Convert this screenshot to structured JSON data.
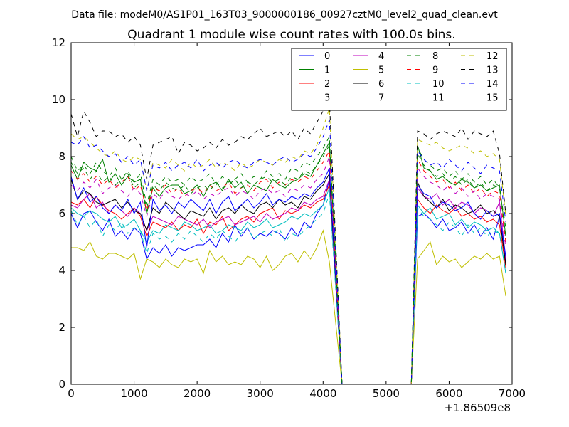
{
  "suptitle": "Data file: modeM0/AS1P01_163T03_9000000186_00927cztM0_level2_quad_clean.evt",
  "chart_data": {
    "type": "line",
    "title": "Quadrant 1 module wise count rates with 100.0s bins.",
    "xlabel": "",
    "ylabel": "",
    "xlim": [
      0,
      7000
    ],
    "ylim": [
      0,
      12
    ],
    "x_offset_label": "+1.86509e8",
    "x_ticks": [
      0,
      1000,
      2000,
      3000,
      4000,
      5000,
      6000,
      7000
    ],
    "x_tick_labels": [
      "0",
      "1000",
      "2000",
      "3000",
      "4000",
      "5000",
      "6000",
      "7000"
    ],
    "y_ticks": [
      0,
      2,
      4,
      6,
      8,
      10,
      12
    ],
    "y_tick_labels": [
      "0",
      "2",
      "4",
      "6",
      "8",
      "10",
      "12"
    ],
    "legend_position": "top-right",
    "legend_columns": 4,
    "x_start": 0,
    "x_step": 100,
    "note_x": "Points at 0..4100 step 100 (42 pts), 4300..5400 near zero, 5500..6900 second segment",
    "series": [
      {
        "name": "0",
        "color": "#0000ff",
        "dash": "solid",
        "values": [
          6.0,
          5.5,
          6.0,
          6.1,
          5.7,
          5.4,
          5.8,
          5.2,
          5.4,
          5.1,
          5.5,
          5.3,
          4.4,
          4.8,
          4.6,
          4.9,
          4.5,
          4.8,
          4.7,
          4.8,
          4.9,
          4.9,
          5.1,
          4.8,
          5.3,
          5.0,
          5.6,
          5.2,
          5.5,
          5.1,
          5.3,
          5.2,
          5.4,
          5.3,
          5.1,
          5.5,
          5.2,
          5.7,
          5.5,
          6.0,
          6.3,
          7.2,
          0,
          0,
          0,
          0,
          0,
          0,
          0,
          0,
          0,
          0,
          0,
          0,
          5.9,
          6.0,
          5.8,
          5.5,
          5.8,
          5.4,
          5.5,
          5.7,
          5.3,
          5.6,
          5.2,
          5.5,
          5.1,
          5.9,
          4.3
        ]
      },
      {
        "name": "1",
        "color": "#008000",
        "dash": "solid",
        "values": [
          7.7,
          7.2,
          7.8,
          7.6,
          7.5,
          7.9,
          7.1,
          7.4,
          7.0,
          7.3,
          7.1,
          7.2,
          6.0,
          6.9,
          6.6,
          6.9,
          7.0,
          7.0,
          6.7,
          6.8,
          7.0,
          6.6,
          7.0,
          7.1,
          6.8,
          7.2,
          6.9,
          7.1,
          6.7,
          7.0,
          6.9,
          6.8,
          7.2,
          7.0,
          6.9,
          7.1,
          7.2,
          7.4,
          7.3,
          7.7,
          8.1,
          8.5,
          0,
          0,
          0,
          0,
          0,
          0,
          0,
          0,
          0,
          0,
          0,
          0,
          8.4,
          7.6,
          7.5,
          7.2,
          7.3,
          7.1,
          7.0,
          7.2,
          7.1,
          6.9,
          7.0,
          6.8,
          6.9,
          7.0,
          5.2
        ]
      },
      {
        "name": "2",
        "color": "#ff0000",
        "dash": "solid",
        "values": [
          6.4,
          6.3,
          6.5,
          6.2,
          6.6,
          6.3,
          6.1,
          6.0,
          5.8,
          6.0,
          6.2,
          5.9,
          5.2,
          5.7,
          5.6,
          5.5,
          5.7,
          5.4,
          5.6,
          5.5,
          5.8,
          5.3,
          5.7,
          5.6,
          5.9,
          5.4,
          5.6,
          5.8,
          5.9,
          5.7,
          6.0,
          6.1,
          6.2,
          5.8,
          6.1,
          6.0,
          6.1,
          6.3,
          6.2,
          6.4,
          6.5,
          7.0,
          0,
          0,
          0,
          0,
          0,
          0,
          0,
          0,
          0,
          0,
          0,
          0,
          6.5,
          6.2,
          6.0,
          6.3,
          6.1,
          6.0,
          6.2,
          5.9,
          6.0,
          5.8,
          5.9,
          5.7,
          5.8,
          5.6,
          4.1
        ]
      },
      {
        "name": "3",
        "color": "#00bfbf",
        "dash": "solid",
        "values": [
          6.2,
          6.0,
          5.9,
          6.1,
          6.0,
          5.8,
          5.7,
          5.9,
          5.5,
          5.6,
          5.8,
          5.4,
          5.0,
          5.4,
          5.3,
          5.6,
          5.5,
          5.4,
          5.7,
          5.6,
          5.4,
          5.5,
          5.6,
          5.3,
          5.4,
          5.6,
          5.5,
          5.4,
          5.7,
          5.5,
          5.6,
          5.8,
          5.5,
          5.6,
          5.7,
          5.9,
          5.8,
          6.0,
          5.9,
          6.1,
          6.3,
          6.9,
          0,
          0,
          0,
          0,
          0,
          0,
          0,
          0,
          0,
          0,
          0,
          0,
          6.3,
          6.0,
          6.2,
          5.8,
          5.9,
          6.0,
          5.6,
          5.8,
          5.5,
          5.7,
          5.6,
          5.4,
          5.5,
          5.3,
          3.9
        ]
      },
      {
        "name": "4",
        "color": "#bf00bf",
        "dash": "solid",
        "values": [
          6.3,
          6.2,
          6.5,
          6.7,
          6.2,
          6.4,
          6.0,
          6.3,
          6.1,
          5.9,
          6.2,
          6.0,
          5.4,
          5.9,
          5.8,
          5.7,
          5.6,
          5.9,
          5.8,
          5.7,
          5.6,
          5.8,
          5.5,
          5.7,
          5.8,
          5.9,
          5.6,
          5.7,
          5.8,
          5.9,
          5.7,
          6.0,
          5.8,
          5.9,
          6.0,
          6.2,
          6.1,
          6.4,
          6.3,
          6.5,
          6.6,
          7.2,
          0,
          0,
          0,
          0,
          0,
          0,
          0,
          0,
          0,
          0,
          0,
          0,
          6.9,
          6.6,
          6.5,
          6.7,
          6.3,
          6.5,
          6.2,
          6.4,
          6.3,
          6.0,
          6.2,
          6.1,
          5.9,
          6.4,
          4.4
        ]
      },
      {
        "name": "5",
        "color": "#bfbf00",
        "dash": "solid",
        "values": [
          4.8,
          4.8,
          4.7,
          5.0,
          4.5,
          4.4,
          4.6,
          4.6,
          4.5,
          4.4,
          4.6,
          3.7,
          4.4,
          4.3,
          4.1,
          4.4,
          4.2,
          4.1,
          4.4,
          4.3,
          4.4,
          3.9,
          4.7,
          4.3,
          4.5,
          4.2,
          4.3,
          4.2,
          4.5,
          4.4,
          4.1,
          4.5,
          4.0,
          4.2,
          4.5,
          4.6,
          4.3,
          4.7,
          4.4,
          4.8,
          5.4,
          4.3,
          0,
          0,
          0,
          0,
          0,
          0,
          0,
          0,
          0,
          0,
          0,
          0,
          4.4,
          4.7,
          5.0,
          4.2,
          4.5,
          4.3,
          4.4,
          4.1,
          4.3,
          4.5,
          4.4,
          4.6,
          4.4,
          4.5,
          3.1
        ]
      },
      {
        "name": "6",
        "color": "#000000",
        "dash": "solid",
        "values": [
          7.2,
          6.5,
          6.8,
          6.7,
          6.4,
          6.3,
          6.4,
          6.5,
          6.2,
          6.4,
          6.1,
          6.0,
          5.4,
          6.2,
          6.0,
          6.4,
          6.2,
          6.0,
          5.8,
          6.1,
          6.0,
          5.9,
          6.2,
          5.8,
          6.1,
          6.2,
          6.0,
          6.3,
          6.1,
          6.0,
          6.3,
          6.4,
          6.2,
          6.5,
          6.3,
          6.4,
          6.2,
          6.6,
          6.5,
          6.8,
          7.0,
          7.4,
          0,
          0,
          0,
          0,
          0,
          0,
          0,
          0,
          0,
          0,
          0,
          0,
          7.1,
          6.6,
          6.4,
          6.2,
          6.5,
          6.1,
          6.3,
          6.2,
          6.0,
          6.1,
          6.3,
          6.0,
          6.1,
          5.9,
          4.2
        ]
      },
      {
        "name": "7",
        "color": "#0000ff",
        "dash": "solid",
        "values": [
          7.3,
          6.5,
          6.9,
          6.4,
          6.6,
          6.2,
          6.0,
          6.3,
          6.1,
          6.5,
          6.0,
          6.4,
          4.8,
          6.5,
          6.1,
          6.3,
          6.0,
          6.4,
          6.2,
          6.5,
          6.3,
          6.1,
          6.5,
          6.0,
          6.4,
          6.6,
          6.1,
          6.3,
          6.5,
          6.2,
          6.4,
          6.7,
          6.3,
          6.5,
          6.4,
          6.6,
          6.5,
          6.7,
          6.6,
          6.9,
          7.1,
          7.6,
          0,
          0,
          0,
          0,
          0,
          0,
          0,
          0,
          0,
          0,
          0,
          0,
          7.0,
          6.7,
          6.6,
          6.2,
          6.4,
          6.3,
          6.1,
          6.2,
          6.4,
          6.0,
          5.8,
          6.1,
          5.9,
          6.0,
          4.5
        ]
      },
      {
        "name": "8",
        "color": "#008000",
        "dash": "dashed",
        "values": [
          8.0,
          7.5,
          7.7,
          7.4,
          7.8,
          7.5,
          7.3,
          7.6,
          7.2,
          7.5,
          7.1,
          7.4,
          6.3,
          7.2,
          7.0,
          7.3,
          7.1,
          7.2,
          7.0,
          7.3,
          7.1,
          7.2,
          7.4,
          7.0,
          7.3,
          7.1,
          7.2,
          7.4,
          7.1,
          7.3,
          7.2,
          7.5,
          7.3,
          7.4,
          7.2,
          7.6,
          7.5,
          7.8,
          7.7,
          8.0,
          8.3,
          8.7,
          0,
          0,
          0,
          0,
          0,
          0,
          0,
          0,
          0,
          0,
          0,
          0,
          8.3,
          7.9,
          7.7,
          7.5,
          7.6,
          7.3,
          7.5,
          7.2,
          7.4,
          7.1,
          7.3,
          7.0,
          7.2,
          6.9,
          5.5
        ]
      },
      {
        "name": "9",
        "color": "#ff0000",
        "dash": "dashed",
        "values": [
          7.5,
          7.2,
          7.4,
          7.1,
          7.3,
          7.0,
          7.2,
          6.9,
          7.1,
          7.3,
          6.8,
          7.0,
          6.1,
          6.9,
          6.8,
          7.0,
          6.7,
          6.9,
          6.6,
          6.8,
          6.9,
          6.7,
          7.0,
          6.8,
          6.9,
          7.1,
          6.7,
          6.9,
          7.0,
          6.8,
          7.1,
          7.2,
          6.9,
          7.1,
          7.0,
          7.2,
          7.1,
          7.3,
          7.2,
          7.5,
          7.8,
          8.2,
          0,
          0,
          0,
          0,
          0,
          0,
          0,
          0,
          0,
          0,
          0,
          0,
          7.9,
          7.5,
          7.3,
          7.1,
          7.2,
          6.9,
          7.1,
          6.8,
          7.0,
          6.7,
          6.9,
          6.6,
          6.8,
          6.7,
          5.0
        ]
      },
      {
        "name": "10",
        "color": "#00bfbf",
        "dash": "dashed",
        "values": [
          6.1,
          5.6,
          5.9,
          5.5,
          5.8,
          5.2,
          5.6,
          5.4,
          5.7,
          5.3,
          5.5,
          5.4,
          4.6,
          5.3,
          5.1,
          5.2,
          5.0,
          5.3,
          5.1,
          5.4,
          5.2,
          5.0,
          5.3,
          5.1,
          5.4,
          5.2,
          5.0,
          5.3,
          5.5,
          5.1,
          5.3,
          5.4,
          5.2,
          5.5,
          5.0,
          5.3,
          5.2,
          5.4,
          5.6,
          5.8,
          6.0,
          6.7,
          0,
          0,
          0,
          0,
          0,
          0,
          0,
          0,
          0,
          0,
          0,
          0,
          6.2,
          5.9,
          5.8,
          5.6,
          5.4,
          5.7,
          5.5,
          5.2,
          5.6,
          5.3,
          5.5,
          5.2,
          5.4,
          5.3,
          3.9
        ]
      },
      {
        "name": "11",
        "color": "#bf00bf",
        "dash": "dashed",
        "values": [
          7.0,
          6.8,
          7.1,
          6.9,
          7.2,
          6.7,
          6.9,
          7.0,
          6.8,
          6.6,
          6.9,
          6.7,
          5.9,
          6.7,
          6.5,
          6.8,
          6.6,
          6.5,
          6.7,
          6.6,
          6.8,
          6.5,
          6.7,
          6.6,
          6.8,
          6.9,
          6.6,
          6.8,
          6.7,
          6.5,
          6.8,
          6.9,
          6.7,
          6.8,
          6.6,
          6.9,
          6.8,
          7.0,
          6.9,
          7.2,
          7.4,
          8.0,
          0,
          0,
          0,
          0,
          0,
          0,
          0,
          0,
          0,
          0,
          0,
          0,
          7.6,
          7.3,
          7.1,
          7.0,
          6.8,
          7.0,
          6.7,
          6.9,
          6.6,
          6.8,
          6.5,
          6.7,
          6.6,
          6.5,
          4.8
        ]
      },
      {
        "name": "12",
        "color": "#bfbf00",
        "dash": "dashed",
        "values": [
          8.8,
          8.6,
          8.7,
          8.5,
          8.3,
          8.1,
          8.0,
          8.2,
          7.9,
          7.8,
          8.0,
          7.9,
          6.8,
          7.8,
          7.7,
          7.6,
          7.9,
          7.7,
          7.5,
          7.8,
          7.6,
          7.7,
          7.9,
          7.6,
          7.8,
          7.7,
          7.5,
          7.8,
          7.6,
          7.7,
          7.9,
          7.8,
          7.7,
          7.9,
          7.8,
          8.0,
          7.9,
          8.2,
          8.1,
          8.4,
          9.0,
          9.7,
          0,
          0,
          0,
          0,
          0,
          0,
          0,
          0,
          0,
          0,
          0,
          0,
          8.6,
          8.5,
          8.4,
          8.5,
          8.3,
          8.2,
          8.3,
          8.4,
          8.3,
          8.1,
          8.2,
          8.0,
          8.1,
          7.9,
          5.9
        ]
      },
      {
        "name": "13",
        "color": "#000000",
        "dash": "dashed",
        "values": [
          9.5,
          8.7,
          9.6,
          9.2,
          8.7,
          8.9,
          8.9,
          8.7,
          8.8,
          8.5,
          8.7,
          8.4,
          7.2,
          8.4,
          8.5,
          8.6,
          8.7,
          8.1,
          8.5,
          8.4,
          8.2,
          8.3,
          8.5,
          8.3,
          8.6,
          8.4,
          8.5,
          8.7,
          8.6,
          8.8,
          9.0,
          8.7,
          8.8,
          8.9,
          8.7,
          8.9,
          8.6,
          9.0,
          8.8,
          9.2,
          9.6,
          10.0,
          0,
          0,
          0,
          0,
          0,
          0,
          0,
          0,
          0,
          0,
          0,
          0,
          8.9,
          8.8,
          8.6,
          8.8,
          8.9,
          8.8,
          8.7,
          9.0,
          8.6,
          8.9,
          8.8,
          8.7,
          8.9,
          8.1,
          6.0
        ]
      },
      {
        "name": "14",
        "color": "#0000ff",
        "dash": "dashed",
        "values": [
          8.5,
          8.4,
          8.7,
          8.3,
          8.4,
          8.2,
          8.0,
          8.1,
          7.8,
          8.0,
          7.7,
          7.9,
          6.8,
          7.7,
          7.6,
          7.8,
          7.5,
          7.7,
          7.8,
          7.6,
          7.9,
          7.5,
          7.7,
          7.8,
          7.6,
          7.8,
          7.9,
          7.7,
          7.6,
          7.8,
          7.9,
          7.8,
          7.7,
          7.9,
          8.0,
          7.8,
          7.9,
          8.1,
          8.0,
          8.3,
          8.7,
          9.3,
          0,
          0,
          0,
          0,
          0,
          0,
          0,
          0,
          0,
          0,
          0,
          0,
          8.2,
          7.9,
          7.7,
          7.8,
          7.6,
          7.9,
          7.7,
          7.5,
          7.8,
          7.6,
          7.4,
          7.7,
          7.6,
          7.5,
          5.7
        ]
      },
      {
        "name": "15",
        "color": "#008000",
        "dash": "dashed",
        "values": [
          7.8,
          7.4,
          7.6,
          7.2,
          7.5,
          7.1,
          7.3,
          7.0,
          7.2,
          7.4,
          6.9,
          7.1,
          6.2,
          7.0,
          6.8,
          7.1,
          6.9,
          6.8,
          7.0,
          6.7,
          6.9,
          7.0,
          6.8,
          7.1,
          6.9,
          7.0,
          7.2,
          6.9,
          7.1,
          7.0,
          7.2,
          7.3,
          7.1,
          7.2,
          7.0,
          7.3,
          7.2,
          7.5,
          7.4,
          7.7,
          8.0,
          8.4,
          0,
          0,
          0,
          0,
          0,
          0,
          0,
          0,
          0,
          0,
          0,
          0,
          8.1,
          7.7,
          7.5,
          7.3,
          7.4,
          7.1,
          7.3,
          7.0,
          7.2,
          6.9,
          7.1,
          6.8,
          7.0,
          6.9,
          5.2
        ]
      }
    ]
  }
}
